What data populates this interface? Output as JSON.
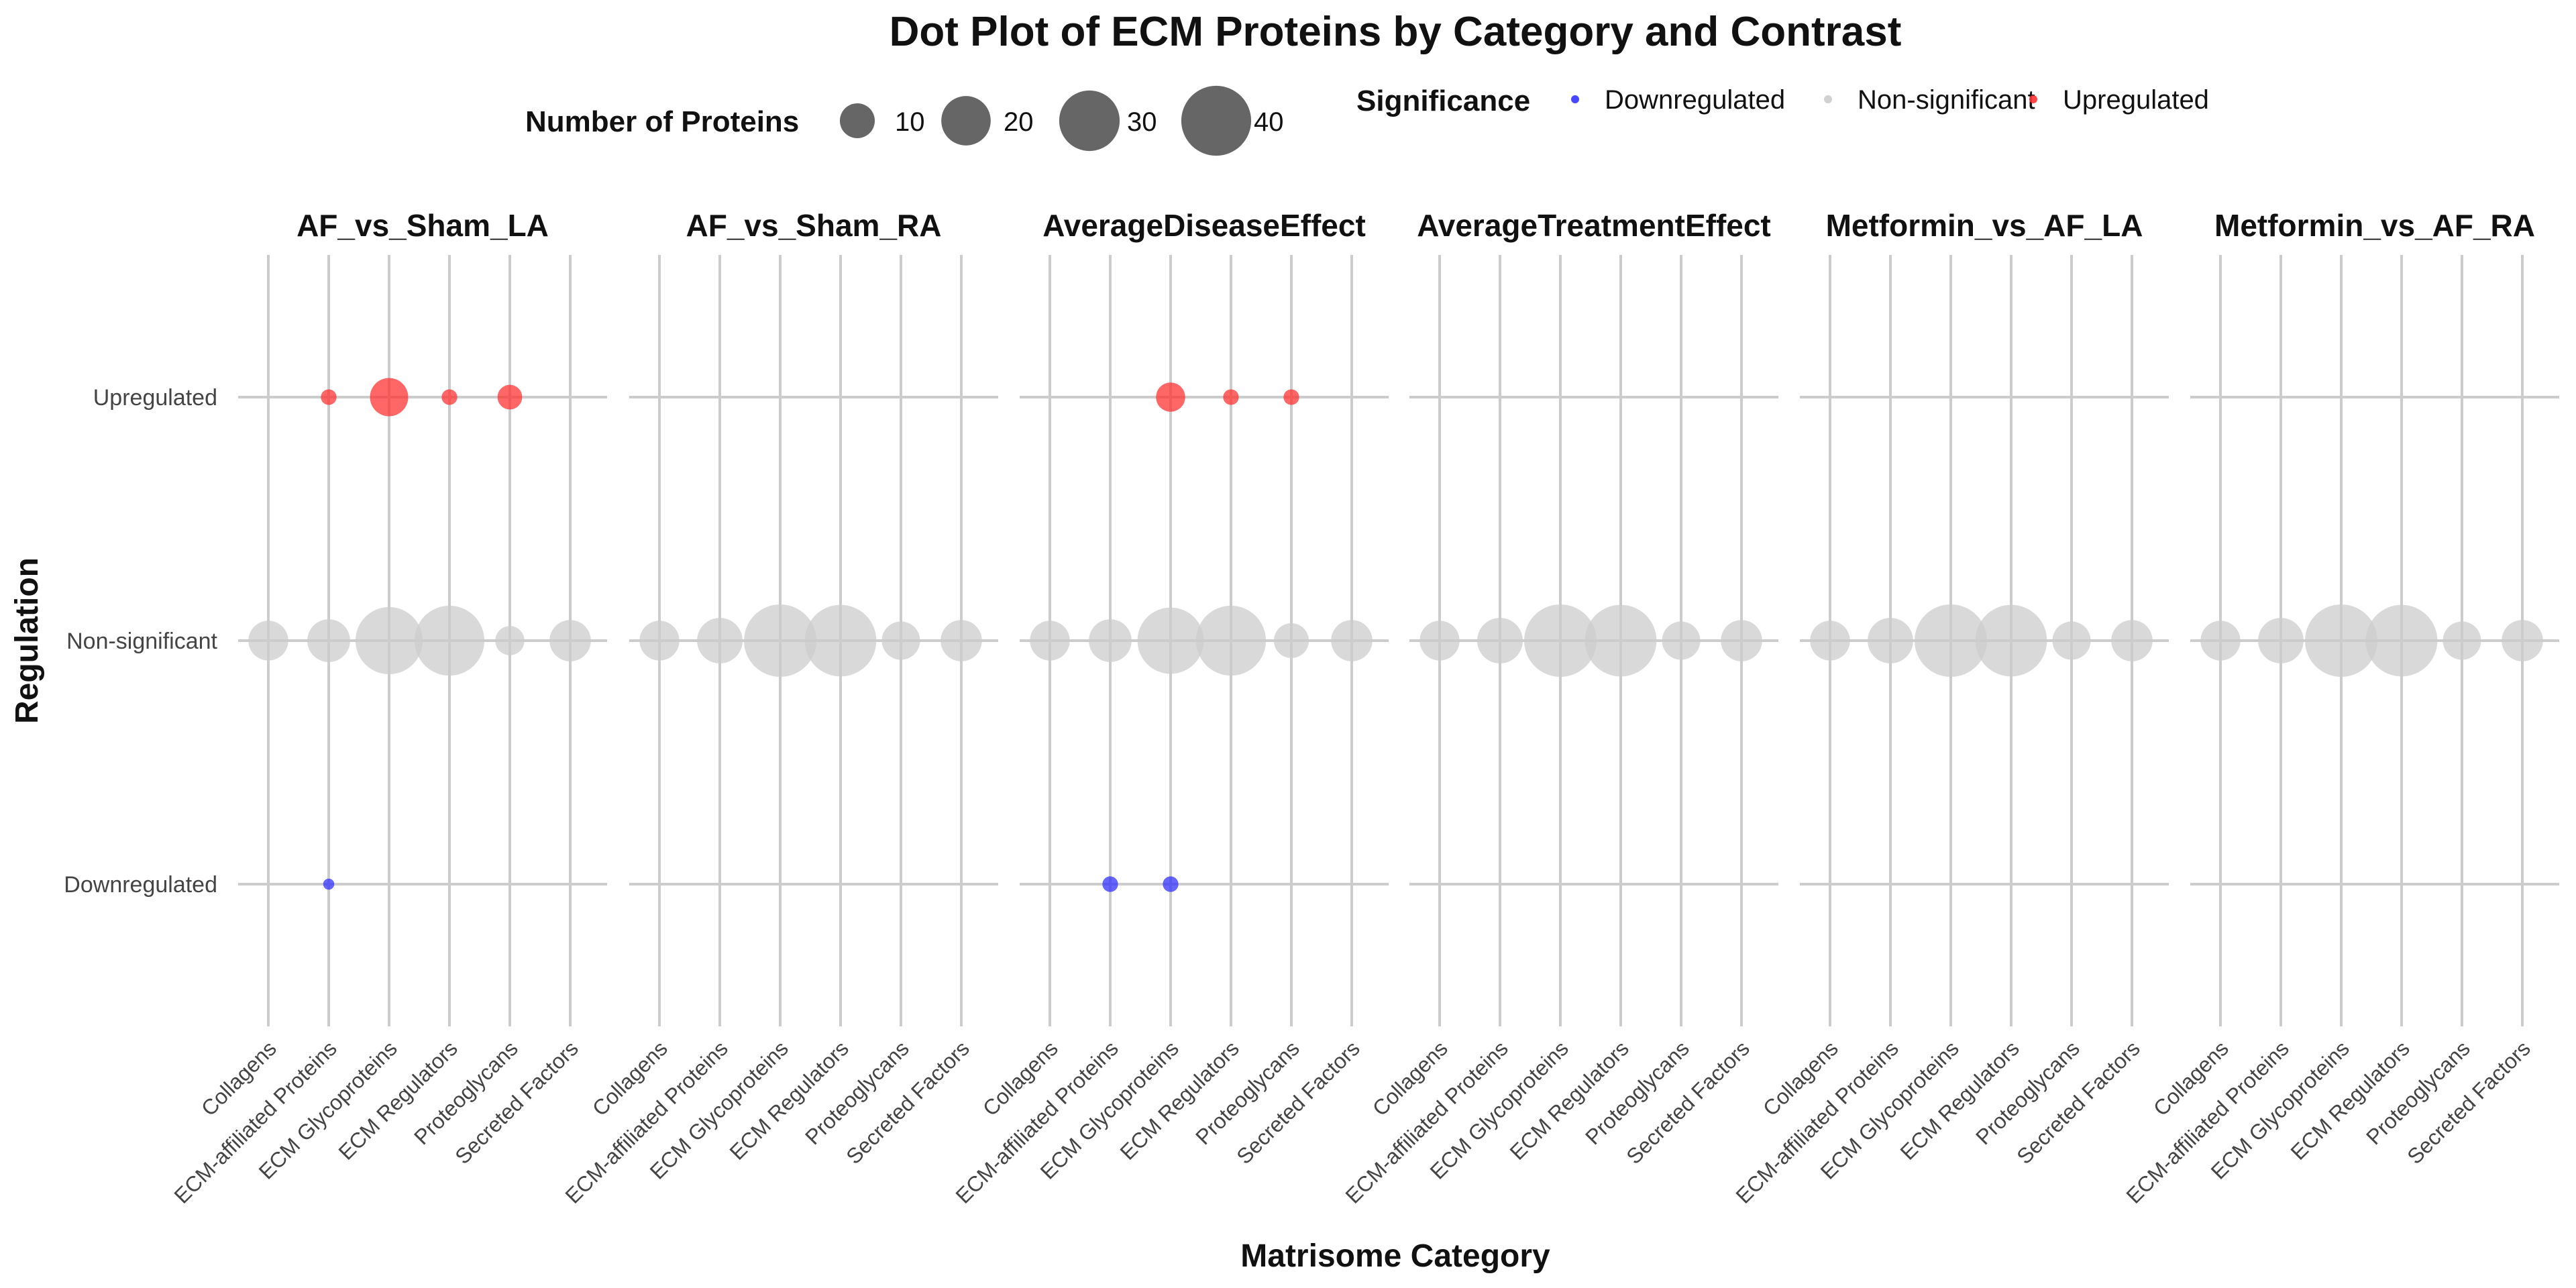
{
  "chart_data": {
    "type": "scatter",
    "title": "Dot Plot of ECM Proteins by Category and Contrast",
    "xlabel": "Matrisome Category",
    "ylabel": "Regulation",
    "categories": [
      "Collagens",
      "ECM-affiliated Proteins",
      "ECM Glycoproteins",
      "ECM Regulators",
      "Proteoglycans",
      "Secreted Factors"
    ],
    "y_levels": [
      "Downregulated",
      "Non-significant",
      "Upregulated"
    ],
    "facets": [
      "AF_vs_Sham_LA",
      "AF_vs_Sham_RA",
      "AverageDiseaseEffect",
      "AverageTreatmentEffect",
      "Metformin_vs_AF_LA",
      "Metformin_vs_AF_RA"
    ],
    "size_legend": {
      "title": "Number of Proteins",
      "breaks": [
        10,
        20,
        30,
        40
      ]
    },
    "color_legend": {
      "title": "Significance",
      "items": [
        {
          "label": "Downregulated",
          "color": "#3333ff"
        },
        {
          "label": "Non-significant",
          "color": "#cccccc"
        },
        {
          "label": "Upregulated",
          "color": "#ff3333"
        }
      ]
    },
    "colors": {
      "Downregulated": "#3333ff",
      "Non-significant": "#cccccc",
      "Upregulated": "#ff3333"
    },
    "grid": true,
    "legend_position": "top",
    "points": [
      {
        "facet": "AF_vs_Sham_LA",
        "category": "ECM-affiliated Proteins",
        "regulation": "Upregulated",
        "count": 2
      },
      {
        "facet": "AF_vs_Sham_LA",
        "category": "ECM Glycoproteins",
        "regulation": "Upregulated",
        "count": 12
      },
      {
        "facet": "AF_vs_Sham_LA",
        "category": "ECM Regulators",
        "regulation": "Upregulated",
        "count": 2
      },
      {
        "facet": "AF_vs_Sham_LA",
        "category": "Proteoglycans",
        "regulation": "Upregulated",
        "count": 5
      },
      {
        "facet": "AF_vs_Sham_LA",
        "category": "ECM-affiliated Proteins",
        "regulation": "Downregulated",
        "count": 1
      },
      {
        "facet": "AF_vs_Sham_LA",
        "category": "Collagens",
        "regulation": "Non-significant",
        "count": 13
      },
      {
        "facet": "AF_vs_Sham_LA",
        "category": "ECM-affiliated Proteins",
        "regulation": "Non-significant",
        "count": 15
      },
      {
        "facet": "AF_vs_Sham_LA",
        "category": "ECM Glycoproteins",
        "regulation": "Non-significant",
        "count": 37
      },
      {
        "facet": "AF_vs_Sham_LA",
        "category": "ECM Regulators",
        "regulation": "Non-significant",
        "count": 40
      },
      {
        "facet": "AF_vs_Sham_LA",
        "category": "Proteoglycans",
        "regulation": "Non-significant",
        "count": 7
      },
      {
        "facet": "AF_vs_Sham_LA",
        "category": "Secreted Factors",
        "regulation": "Non-significant",
        "count": 14
      },
      {
        "facet": "AF_vs_Sham_RA",
        "category": "Collagens",
        "regulation": "Non-significant",
        "count": 13
      },
      {
        "facet": "AF_vs_Sham_RA",
        "category": "ECM-affiliated Proteins",
        "regulation": "Non-significant",
        "count": 17
      },
      {
        "facet": "AF_vs_Sham_RA",
        "category": "ECM Glycoproteins",
        "regulation": "Non-significant",
        "count": 43
      },
      {
        "facet": "AF_vs_Sham_RA",
        "category": "ECM Regulators",
        "regulation": "Non-significant",
        "count": 42
      },
      {
        "facet": "AF_vs_Sham_RA",
        "category": "Proteoglycans",
        "regulation": "Non-significant",
        "count": 12
      },
      {
        "facet": "AF_vs_Sham_RA",
        "category": "Secreted Factors",
        "regulation": "Non-significant",
        "count": 14
      },
      {
        "facet": "AverageDiseaseEffect",
        "category": "ECM Glycoproteins",
        "regulation": "Upregulated",
        "count": 7
      },
      {
        "facet": "AverageDiseaseEffect",
        "category": "ECM Regulators",
        "regulation": "Upregulated",
        "count": 2
      },
      {
        "facet": "AverageDiseaseEffect",
        "category": "Proteoglycans",
        "regulation": "Upregulated",
        "count": 2
      },
      {
        "facet": "AverageDiseaseEffect",
        "category": "ECM-affiliated Proteins",
        "regulation": "Downregulated",
        "count": 2
      },
      {
        "facet": "AverageDiseaseEffect",
        "category": "ECM Glycoproteins",
        "regulation": "Downregulated",
        "count": 2
      },
      {
        "facet": "AverageDiseaseEffect",
        "category": "Collagens",
        "regulation": "Non-significant",
        "count": 13
      },
      {
        "facet": "AverageDiseaseEffect",
        "category": "ECM-affiliated Proteins",
        "regulation": "Non-significant",
        "count": 15
      },
      {
        "facet": "AverageDiseaseEffect",
        "category": "ECM Glycoproteins",
        "regulation": "Non-significant",
        "count": 36
      },
      {
        "facet": "AverageDiseaseEffect",
        "category": "ECM Regulators",
        "regulation": "Non-significant",
        "count": 40
      },
      {
        "facet": "AverageDiseaseEffect",
        "category": "Proteoglycans",
        "regulation": "Non-significant",
        "count": 10
      },
      {
        "facet": "AverageDiseaseEffect",
        "category": "Secreted Factors",
        "regulation": "Non-significant",
        "count": 14
      },
      {
        "facet": "AverageTreatmentEffect",
        "category": "Collagens",
        "regulation": "Non-significant",
        "count": 13
      },
      {
        "facet": "AverageTreatmentEffect",
        "category": "ECM-affiliated Proteins",
        "regulation": "Non-significant",
        "count": 17
      },
      {
        "facet": "AverageTreatmentEffect",
        "category": "ECM Glycoproteins",
        "regulation": "Non-significant",
        "count": 43
      },
      {
        "facet": "AverageTreatmentEffect",
        "category": "ECM Regulators",
        "regulation": "Non-significant",
        "count": 42
      },
      {
        "facet": "AverageTreatmentEffect",
        "category": "Proteoglycans",
        "regulation": "Non-significant",
        "count": 12
      },
      {
        "facet": "AverageTreatmentEffect",
        "category": "Secreted Factors",
        "regulation": "Non-significant",
        "count": 14
      },
      {
        "facet": "Metformin_vs_AF_LA",
        "category": "Collagens",
        "regulation": "Non-significant",
        "count": 13
      },
      {
        "facet": "Metformin_vs_AF_LA",
        "category": "ECM-affiliated Proteins",
        "regulation": "Non-significant",
        "count": 17
      },
      {
        "facet": "Metformin_vs_AF_LA",
        "category": "ECM Glycoproteins",
        "regulation": "Non-significant",
        "count": 43
      },
      {
        "facet": "Metformin_vs_AF_LA",
        "category": "ECM Regulators",
        "regulation": "Non-significant",
        "count": 42
      },
      {
        "facet": "Metformin_vs_AF_LA",
        "category": "Proteoglycans",
        "regulation": "Non-significant",
        "count": 12
      },
      {
        "facet": "Metformin_vs_AF_LA",
        "category": "Secreted Factors",
        "regulation": "Non-significant",
        "count": 14
      },
      {
        "facet": "Metformin_vs_AF_RA",
        "category": "Collagens",
        "regulation": "Non-significant",
        "count": 13
      },
      {
        "facet": "Metformin_vs_AF_RA",
        "category": "ECM-affiliated Proteins",
        "regulation": "Non-significant",
        "count": 17
      },
      {
        "facet": "Metformin_vs_AF_RA",
        "category": "ECM Glycoproteins",
        "regulation": "Non-significant",
        "count": 43
      },
      {
        "facet": "Metformin_vs_AF_RA",
        "category": "ECM Regulators",
        "regulation": "Non-significant",
        "count": 42
      },
      {
        "facet": "Metformin_vs_AF_RA",
        "category": "Proteoglycans",
        "regulation": "Non-significant",
        "count": 12
      },
      {
        "facet": "Metformin_vs_AF_RA",
        "category": "Secreted Factors",
        "regulation": "Non-significant",
        "count": 14
      }
    ]
  }
}
